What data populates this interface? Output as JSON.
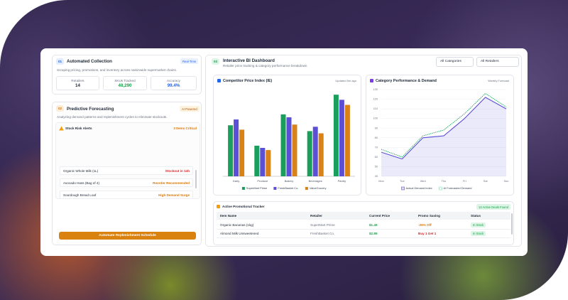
{
  "collection": {
    "step": "01",
    "title": "Automated Collection",
    "badge": "Real-Time",
    "description": "Scraping pricing, promotions, and inventory across nationwide supermarket chains.",
    "stats": [
      {
        "label": "Retailers",
        "value": "14"
      },
      {
        "label": "SKUs Tracked",
        "value": "48,290"
      },
      {
        "label": "Accuracy",
        "value": "99.4%"
      }
    ]
  },
  "forecasting": {
    "step": "02",
    "title": "Predictive Forecasting",
    "badge": "AI Powered",
    "description": "Analyzing demand patterns and replenishment cycles to eliminate stockouts.",
    "alerts_title": "Stock Risk Alerts",
    "alerts_count": "3 Items Critical",
    "alerts": [
      {
        "item": "Organic Whole Milk (1L)",
        "status": "Stockout in 14h"
      },
      {
        "item": "Avocado Hass (Bag of 4)",
        "status": "Reorder Recommended"
      },
      {
        "item": "Sourdough Bread Loaf",
        "status": "High Demand Surge"
      }
    ],
    "button": "Automate Replenishment Schedule"
  },
  "dashboard": {
    "step": "03",
    "title": "Interactive BI Dashboard",
    "subtitle": "Retailer price tracking & category performance breakdown",
    "filters": [
      "All Categories",
      "All Retailers"
    ]
  },
  "chart_data": [
    {
      "type": "bar",
      "title": "Competitor Price Index (IE)",
      "subtitle": "Updated 5m ago",
      "categories": [
        "Dairy",
        "Produce",
        "Bakery",
        "Beverages",
        "Pantry"
      ],
      "series": [
        {
          "name": "SuperMart Prime",
          "color": "#1a9e5c",
          "values": [
            70,
            42,
            85,
            62,
            112
          ]
        },
        {
          "name": "FreshBasket Co.",
          "color": "#5b4fd6",
          "values": [
            78,
            39,
            81,
            68,
            105
          ]
        },
        {
          "name": "ValueGrocery",
          "color": "#d98218",
          "values": [
            64,
            36,
            71,
            59,
            98
          ]
        }
      ],
      "ylim": [
        0,
        120
      ]
    },
    {
      "type": "line",
      "title": "Category Performance & Demand",
      "subtitle": "Weekly Forecast",
      "categories": [
        "Mon",
        "Tue",
        "Wed",
        "Thu",
        "Fri",
        "Sat",
        "Sun"
      ],
      "series": [
        {
          "name": "Actual Demand Index",
          "color": "#5b4fd6",
          "values": [
            65,
            58,
            80,
            82,
            100,
            122,
            110
          ],
          "area": true
        },
        {
          "name": "AI Forecasted Demand",
          "color": "#1a9e5c",
          "values": [
            68,
            60,
            82,
            88,
            105,
            126,
            112
          ],
          "line_style": "dotted"
        }
      ],
      "ylim": [
        40,
        130
      ],
      "yticks": [
        40,
        50,
        60,
        70,
        80,
        90,
        100,
        110,
        120,
        130
      ],
      "grid": true
    }
  ],
  "promo": {
    "title": "Active Promotional Tracker",
    "badge": "12 Active Deals Found",
    "columns": [
      "Item Name",
      "Retailer",
      "Current Price",
      "Promo Saving",
      "Status"
    ],
    "rows": [
      [
        "Organic Bananas (1kg)",
        "SuperMart Prime",
        "$1.49",
        "-25% Off",
        "In Stock"
      ],
      [
        "Almond Milk Unsweetened",
        "FreshBasket Co.",
        "$2.89",
        "Buy 1 Get 1",
        "In Stock"
      ]
    ]
  }
}
